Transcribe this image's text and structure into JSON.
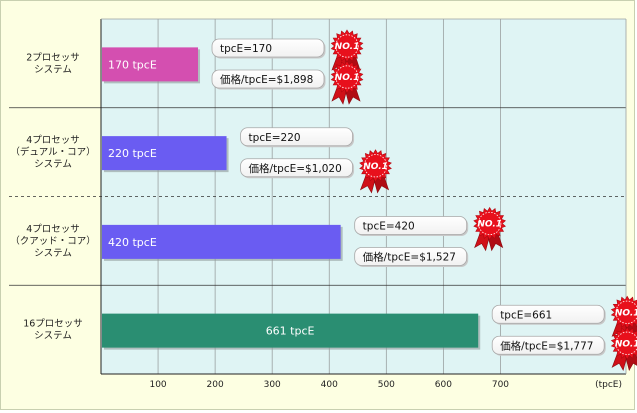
{
  "chart_data": {
    "type": "bar",
    "orientation": "horizontal",
    "categories": [
      [
        "2プロセッサ",
        "システム"
      ],
      [
        "4プロセッサ",
        "（デュアル・コア）",
        "システム"
      ],
      [
        "4プロセッサ",
        "（クアッド・コア）",
        "システム"
      ],
      [
        "16プロセッサ",
        "システム"
      ]
    ],
    "values": [
      170,
      220,
      420,
      661
    ],
    "bar_labels": [
      "170 tpcE",
      "220 tpcE",
      "420 tpcE",
      "661 tpcE"
    ],
    "bar_colors": [
      "#d44fb0",
      "#6a5cf2",
      "#6a5cf2",
      "#2a8e72"
    ],
    "callouts": [
      {
        "tpce": "tpcE=170",
        "price": "価格/tpcE=$1,898"
      },
      {
        "tpce": "tpcE=220",
        "price": "価格/tpcE=$1,020"
      },
      {
        "tpce": "tpcE=420",
        "price": "価格/tpcE=$1,527"
      },
      {
        "tpce": "tpcE=661",
        "price": "価格/tpcE=$1,777"
      }
    ],
    "badge_text": "NO.1",
    "badges": [
      {
        "row": 0,
        "line": 0
      },
      {
        "row": 0,
        "line": 1
      },
      {
        "row": 1,
        "line": 1
      },
      {
        "row": 2,
        "line": 0
      },
      {
        "row": 3,
        "line": 0
      },
      {
        "row": 3,
        "line": 1
      }
    ],
    "xticks": [
      100,
      200,
      300,
      400,
      500,
      600,
      700
    ],
    "xunit": "(tpcE)",
    "xlim": [
      0,
      920
    ],
    "grid": true,
    "plot_bg": "#dff4f4",
    "badge_color": "#e8101c"
  }
}
